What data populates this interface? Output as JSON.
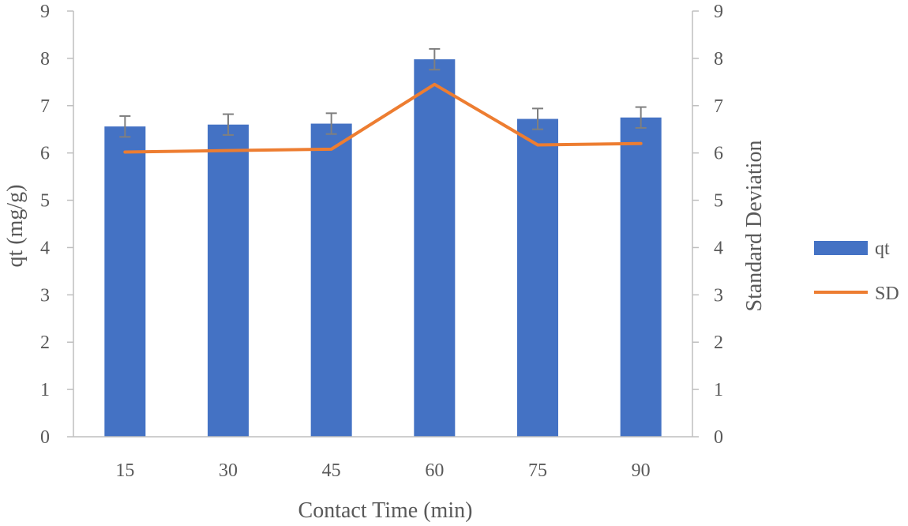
{
  "chart_data": {
    "type": "bar",
    "title": "",
    "xlabel": "Contact Time (min)",
    "ylabel": "qt (mg/g)",
    "y2label": "Standard Deviation",
    "categories": [
      "15",
      "30",
      "45",
      "60",
      "75",
      "90"
    ],
    "ylim": [
      0,
      9
    ],
    "y2lim": [
      0,
      9
    ],
    "yticks": [
      "0",
      "1",
      "2",
      "3",
      "4",
      "5",
      "6",
      "7",
      "8",
      "9"
    ],
    "y2ticks": [
      "0",
      "1",
      "2",
      "3",
      "4",
      "5",
      "6",
      "7",
      "8",
      "9"
    ],
    "grid": false,
    "legend_position": "right",
    "series": [
      {
        "name": "qt",
        "kind": "bar",
        "axis": "left",
        "color": "#4472c4",
        "values": [
          6.56,
          6.6,
          6.62,
          7.98,
          6.72,
          6.75
        ],
        "error": [
          0.22,
          0.22,
          0.22,
          0.22,
          0.22,
          0.22
        ]
      },
      {
        "name": "SD",
        "kind": "line",
        "axis": "right",
        "color": "#ed7d31",
        "values": [
          6.02,
          6.05,
          6.08,
          7.45,
          6.17,
          6.2
        ]
      }
    ],
    "errorbar_color": "#7f7f7f"
  }
}
